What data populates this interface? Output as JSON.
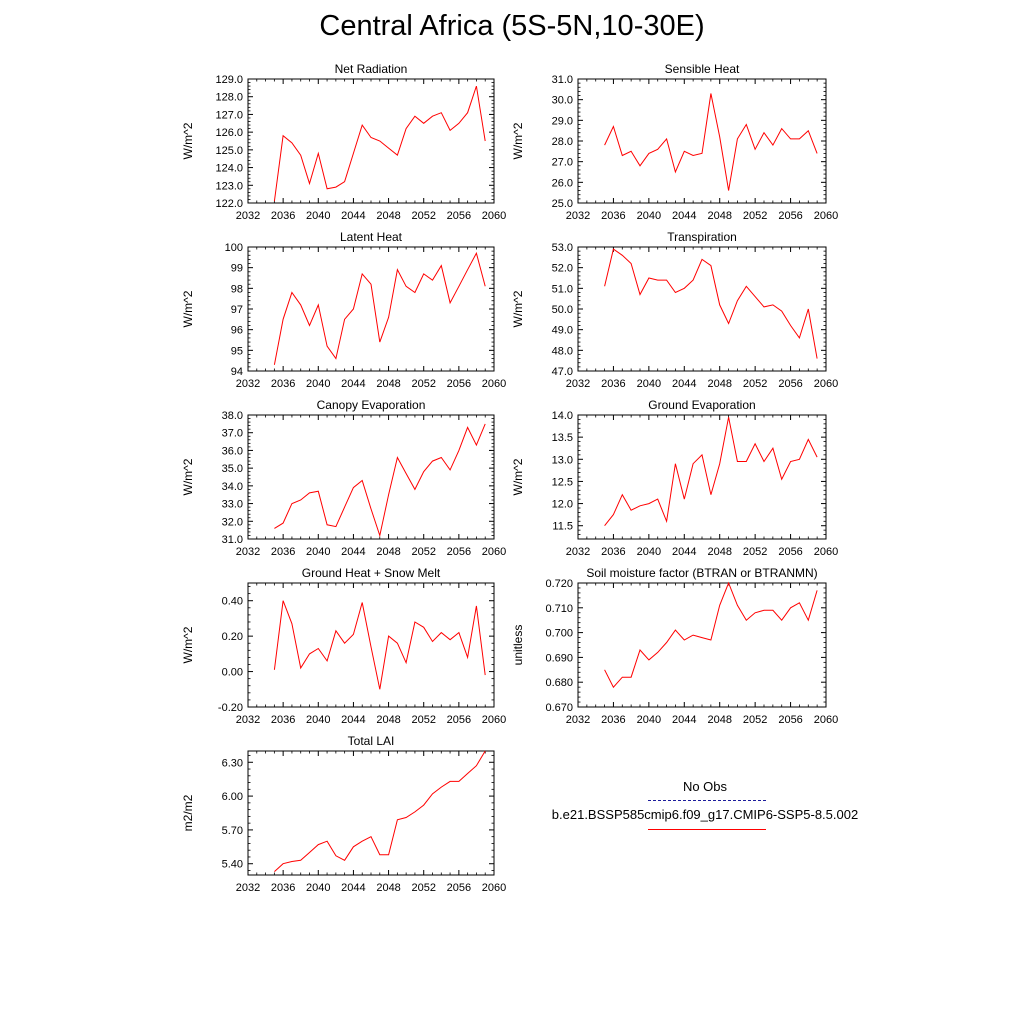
{
  "page": {
    "title": "Central Africa (5S-5N,10-30E)"
  },
  "legend": {
    "obs_label": "No Obs",
    "obs_color": "#1c1c9c",
    "model_label": "b.e21.BSSP585cmip6.f09_g17.CMIP6-SSP5-8.5.002",
    "model_color": "#ff0000"
  },
  "chart_data": [
    {
      "type": "line",
      "title": "Net Radiation",
      "ylabel": "W/m^2",
      "xlim": [
        2032,
        2060
      ],
      "xticks": [
        2032,
        2036,
        2040,
        2044,
        2048,
        2052,
        2056,
        2060
      ],
      "xtick_labels": [
        "2032",
        "2036",
        "2040",
        "2044",
        "2048",
        "2052",
        "2056",
        "2060"
      ],
      "ylim": [
        122.0,
        129.0
      ],
      "yticks": [
        122,
        123,
        124,
        125,
        126,
        127,
        128,
        129
      ],
      "ytick_labels": [
        "122.0",
        "123.0",
        "124.0",
        "125.0",
        "126.0",
        "127.0",
        "128.0",
        "129.0"
      ],
      "series": [
        {
          "color": "#ff0000",
          "x": [
            2035,
            2036,
            2037,
            2038,
            2039,
            2040,
            2041,
            2042,
            2043,
            2044,
            2045,
            2046,
            2047,
            2048,
            2049,
            2050,
            2051,
            2052,
            2053,
            2054,
            2055,
            2056,
            2057,
            2058,
            2059
          ],
          "y": [
            122.1,
            125.8,
            125.4,
            124.7,
            123.1,
            124.8,
            122.8,
            122.9,
            123.2,
            124.8,
            126.4,
            125.7,
            125.5,
            125.1,
            124.7,
            126.2,
            126.9,
            126.5,
            126.9,
            127.1,
            126.1,
            126.5,
            127.1,
            128.6,
            125.5
          ]
        }
      ]
    },
    {
      "type": "line",
      "title": "Sensible Heat",
      "ylabel": "W/m^2",
      "xlim": [
        2032,
        2060
      ],
      "xticks": [
        2032,
        2036,
        2040,
        2044,
        2048,
        2052,
        2056,
        2060
      ],
      "xtick_labels": [
        "2032",
        "2036",
        "2040",
        "2044",
        "2048",
        "2052",
        "2056",
        "2060"
      ],
      "ylim": [
        25.0,
        31.0
      ],
      "yticks": [
        25,
        26,
        27,
        28,
        29,
        30,
        31
      ],
      "ytick_labels": [
        "25.0",
        "26.0",
        "27.0",
        "28.0",
        "29.0",
        "30.0",
        "31.0"
      ],
      "series": [
        {
          "color": "#ff0000",
          "x": [
            2035,
            2036,
            2037,
            2038,
            2039,
            2040,
            2041,
            2042,
            2043,
            2044,
            2045,
            2046,
            2047,
            2048,
            2049,
            2050,
            2051,
            2052,
            2053,
            2054,
            2055,
            2056,
            2057,
            2058,
            2059
          ],
          "y": [
            27.8,
            28.7,
            27.3,
            27.5,
            26.8,
            27.4,
            27.6,
            28.1,
            26.5,
            27.5,
            27.3,
            27.4,
            30.3,
            28.2,
            25.6,
            28.1,
            28.8,
            27.6,
            28.4,
            27.8,
            28.6,
            28.1,
            28.1,
            28.5,
            27.4
          ]
        }
      ]
    },
    {
      "type": "line",
      "title": "Latent Heat",
      "ylabel": "W/m^2",
      "xlim": [
        2032,
        2060
      ],
      "xticks": [
        2032,
        2036,
        2040,
        2044,
        2048,
        2052,
        2056,
        2060
      ],
      "xtick_labels": [
        "2032",
        "2036",
        "2040",
        "2044",
        "2048",
        "2052",
        "2056",
        "2060"
      ],
      "ylim": [
        94,
        100
      ],
      "yticks": [
        94,
        95,
        96,
        97,
        98,
        99,
        100
      ],
      "ytick_labels": [
        "94",
        "95",
        "96",
        "97",
        "98",
        "99",
        "100"
      ],
      "series": [
        {
          "color": "#ff0000",
          "x": [
            2035,
            2036,
            2037,
            2038,
            2039,
            2040,
            2041,
            2042,
            2043,
            2044,
            2045,
            2046,
            2047,
            2048,
            2049,
            2050,
            2051,
            2052,
            2053,
            2054,
            2055,
            2056,
            2057,
            2058,
            2059
          ],
          "y": [
            94.3,
            96.5,
            97.8,
            97.2,
            96.2,
            97.2,
            95.2,
            94.6,
            96.5,
            97.0,
            98.7,
            98.2,
            95.4,
            96.6,
            98.9,
            98.1,
            97.8,
            98.7,
            98.4,
            99.1,
            97.3,
            98.1,
            98.9,
            99.7,
            98.1
          ]
        }
      ]
    },
    {
      "type": "line",
      "title": "Transpiration",
      "ylabel": "W/m^2",
      "xlim": [
        2032,
        2060
      ],
      "xticks": [
        2032,
        2036,
        2040,
        2044,
        2048,
        2052,
        2056,
        2060
      ],
      "xtick_labels": [
        "2032",
        "2036",
        "2040",
        "2044",
        "2048",
        "2052",
        "2056",
        "2060"
      ],
      "ylim": [
        47.0,
        53.0
      ],
      "yticks": [
        47,
        48,
        49,
        50,
        51,
        52,
        53
      ],
      "ytick_labels": [
        "47.0",
        "48.0",
        "49.0",
        "50.0",
        "51.0",
        "52.0",
        "53.0"
      ],
      "series": [
        {
          "color": "#ff0000",
          "x": [
            2035,
            2036,
            2037,
            2038,
            2039,
            2040,
            2041,
            2042,
            2043,
            2044,
            2045,
            2046,
            2047,
            2048,
            2049,
            2050,
            2051,
            2052,
            2053,
            2054,
            2055,
            2056,
            2057,
            2058,
            2059
          ],
          "y": [
            51.1,
            52.9,
            52.6,
            52.2,
            50.7,
            51.5,
            51.4,
            51.4,
            50.8,
            51.0,
            51.4,
            52.4,
            52.1,
            50.2,
            49.3,
            50.4,
            51.1,
            50.6,
            50.1,
            50.2,
            49.9,
            49.2,
            48.6,
            50.0,
            47.6
          ]
        }
      ]
    },
    {
      "type": "line",
      "title": "Canopy Evaporation",
      "ylabel": "W/m^2",
      "xlim": [
        2032,
        2060
      ],
      "xticks": [
        2032,
        2036,
        2040,
        2044,
        2048,
        2052,
        2056,
        2060
      ],
      "xtick_labels": [
        "2032",
        "2036",
        "2040",
        "2044",
        "2048",
        "2052",
        "2056",
        "2060"
      ],
      "ylim": [
        31.0,
        38.0
      ],
      "yticks": [
        31,
        32,
        33,
        34,
        35,
        36,
        37,
        38
      ],
      "ytick_labels": [
        "31.0",
        "32.0",
        "33.0",
        "34.0",
        "35.0",
        "36.0",
        "37.0",
        "38.0"
      ],
      "series": [
        {
          "color": "#ff0000",
          "x": [
            2035,
            2036,
            2037,
            2038,
            2039,
            2040,
            2041,
            2042,
            2043,
            2044,
            2045,
            2046,
            2047,
            2048,
            2049,
            2050,
            2051,
            2052,
            2053,
            2054,
            2055,
            2056,
            2057,
            2058,
            2059
          ],
          "y": [
            31.6,
            31.9,
            33.0,
            33.2,
            33.6,
            33.7,
            31.8,
            31.7,
            32.8,
            33.9,
            34.3,
            32.7,
            31.2,
            33.5,
            35.6,
            34.7,
            33.8,
            34.8,
            35.4,
            35.6,
            34.9,
            36.0,
            37.3,
            36.3,
            37.5
          ]
        }
      ]
    },
    {
      "type": "line",
      "title": "Ground Evaporation",
      "ylabel": "W/m^2",
      "xlim": [
        2032,
        2060
      ],
      "xticks": [
        2032,
        2036,
        2040,
        2044,
        2048,
        2052,
        2056,
        2060
      ],
      "xtick_labels": [
        "2032",
        "2036",
        "2040",
        "2044",
        "2048",
        "2052",
        "2056",
        "2060"
      ],
      "ylim": [
        11.2,
        14.0
      ],
      "yticks": [
        11.5,
        12.0,
        12.5,
        13.0,
        13.5,
        14.0
      ],
      "ytick_labels": [
        "11.5",
        "12.0",
        "12.5",
        "13.0",
        "13.5",
        "14.0"
      ],
      "series": [
        {
          "color": "#ff0000",
          "x": [
            2035,
            2036,
            2037,
            2038,
            2039,
            2040,
            2041,
            2042,
            2043,
            2044,
            2045,
            2046,
            2047,
            2048,
            2049,
            2050,
            2051,
            2052,
            2053,
            2054,
            2055,
            2056,
            2057,
            2058,
            2059
          ],
          "y": [
            11.5,
            11.75,
            12.2,
            11.85,
            11.95,
            12.0,
            12.1,
            11.6,
            12.9,
            12.1,
            12.9,
            13.1,
            12.2,
            12.9,
            13.95,
            12.95,
            12.95,
            13.35,
            12.95,
            13.25,
            12.55,
            12.95,
            13.0,
            13.45,
            13.05
          ]
        }
      ]
    },
    {
      "type": "line",
      "title": "Ground Heat + Snow Melt",
      "ylabel": "W/m^2",
      "xlim": [
        2032,
        2060
      ],
      "xticks": [
        2032,
        2036,
        2040,
        2044,
        2048,
        2052,
        2056,
        2060
      ],
      "xtick_labels": [
        "2032",
        "2036",
        "2040",
        "2044",
        "2048",
        "2052",
        "2056",
        "2060"
      ],
      "ylim": [
        -0.2,
        0.5
      ],
      "yticks": [
        -0.2,
        0.0,
        0.2,
        0.4
      ],
      "ytick_labels": [
        "-0.20",
        "0.00",
        "0.20",
        "0.40"
      ],
      "series": [
        {
          "color": "#ff0000",
          "x": [
            2035,
            2036,
            2037,
            2038,
            2039,
            2040,
            2041,
            2042,
            2043,
            2044,
            2045,
            2046,
            2047,
            2048,
            2049,
            2050,
            2051,
            2052,
            2053,
            2054,
            2055,
            2056,
            2057,
            2058,
            2059
          ],
          "y": [
            0.01,
            0.4,
            0.27,
            0.02,
            0.1,
            0.13,
            0.06,
            0.23,
            0.16,
            0.21,
            0.39,
            0.14,
            -0.1,
            0.2,
            0.16,
            0.05,
            0.28,
            0.25,
            0.17,
            0.22,
            0.18,
            0.22,
            0.08,
            0.37,
            -0.02
          ]
        }
      ]
    },
    {
      "type": "line",
      "title": "Soil moisture factor (BTRAN or BTRANMN)",
      "ylabel": "unitless",
      "xlim": [
        2032,
        2060
      ],
      "xticks": [
        2032,
        2036,
        2040,
        2044,
        2048,
        2052,
        2056,
        2060
      ],
      "xtick_labels": [
        "2032",
        "2036",
        "2040",
        "2044",
        "2048",
        "2052",
        "2056",
        "2060"
      ],
      "ylim": [
        0.67,
        0.72
      ],
      "yticks": [
        0.67,
        0.68,
        0.69,
        0.7,
        0.71,
        0.72
      ],
      "ytick_labels": [
        "0.670",
        "0.680",
        "0.690",
        "0.700",
        "0.710",
        "0.720"
      ],
      "series": [
        {
          "color": "#ff0000",
          "x": [
            2035,
            2036,
            2037,
            2038,
            2039,
            2040,
            2041,
            2042,
            2043,
            2044,
            2045,
            2046,
            2047,
            2048,
            2049,
            2050,
            2051,
            2052,
            2053,
            2054,
            2055,
            2056,
            2057,
            2058,
            2059
          ],
          "y": [
            0.685,
            0.678,
            0.682,
            0.682,
            0.693,
            0.689,
            0.692,
            0.696,
            0.701,
            0.697,
            0.699,
            0.698,
            0.697,
            0.711,
            0.72,
            0.711,
            0.705,
            0.708,
            0.709,
            0.709,
            0.705,
            0.71,
            0.712,
            0.705,
            0.717
          ]
        }
      ]
    },
    {
      "type": "line",
      "title": "Total LAI",
      "ylabel": "m2/m2",
      "xlim": [
        2032,
        2060
      ],
      "xticks": [
        2032,
        2036,
        2040,
        2044,
        2048,
        2052,
        2056,
        2060
      ],
      "xtick_labels": [
        "2032",
        "2036",
        "2040",
        "2044",
        "2048",
        "2052",
        "2056",
        "2060"
      ],
      "ylim": [
        5.3,
        6.4
      ],
      "yticks": [
        5.4,
        5.7,
        6.0,
        6.3
      ],
      "ytick_labels": [
        "5.40",
        "5.70",
        "6.00",
        "6.30"
      ],
      "series": [
        {
          "color": "#ff0000",
          "x": [
            2035,
            2036,
            2037,
            2038,
            2039,
            2040,
            2041,
            2042,
            2043,
            2044,
            2045,
            2046,
            2047,
            2048,
            2049,
            2050,
            2051,
            2052,
            2053,
            2054,
            2055,
            2056,
            2057,
            2058,
            2059
          ],
          "y": [
            5.33,
            5.4,
            5.42,
            5.43,
            5.5,
            5.57,
            5.6,
            5.47,
            5.43,
            5.55,
            5.6,
            5.64,
            5.48,
            5.48,
            5.79,
            5.81,
            5.86,
            5.92,
            6.02,
            6.08,
            6.13,
            6.13,
            6.2,
            6.27,
            6.4
          ]
        }
      ]
    }
  ]
}
